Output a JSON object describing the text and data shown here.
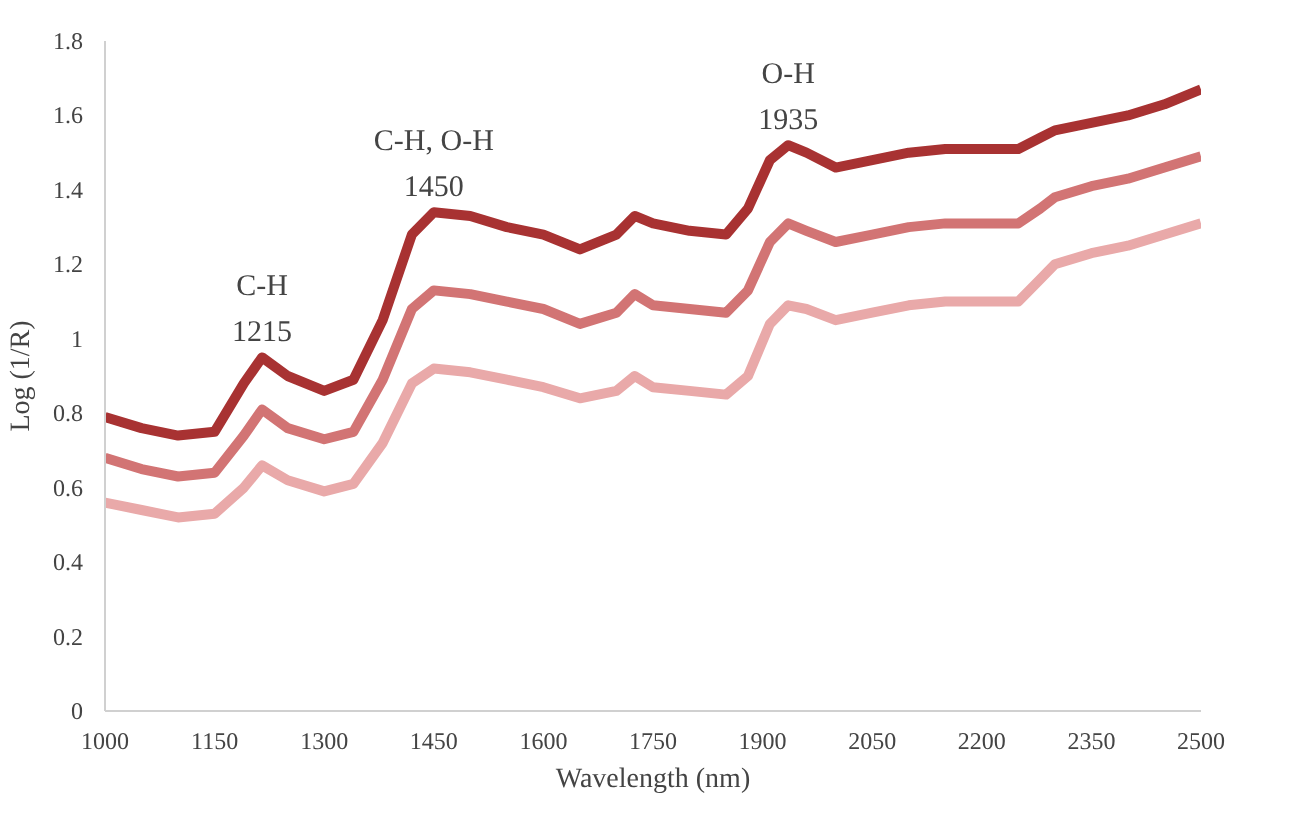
{
  "chart_data": {
    "type": "line",
    "xlabel": "Wavelength (nm)",
    "ylabel": "Log (1/R)",
    "x": [
      1000,
      1050,
      1100,
      1150,
      1190,
      1215,
      1250,
      1300,
      1340,
      1380,
      1420,
      1450,
      1500,
      1550,
      1600,
      1650,
      1700,
      1725,
      1750,
      1800,
      1850,
      1880,
      1910,
      1935,
      1960,
      2000,
      2050,
      2100,
      2150,
      2200,
      2250,
      2280,
      2300,
      2350,
      2400,
      2450,
      2500
    ],
    "series": [
      {
        "color": "#a83232",
        "values": [
          0.79,
          0.76,
          0.74,
          0.75,
          0.88,
          0.95,
          0.9,
          0.86,
          0.89,
          1.05,
          1.28,
          1.34,
          1.33,
          1.3,
          1.28,
          1.24,
          1.28,
          1.33,
          1.31,
          1.29,
          1.28,
          1.35,
          1.48,
          1.52,
          1.5,
          1.46,
          1.48,
          1.5,
          1.51,
          1.51,
          1.51,
          1.54,
          1.56,
          1.58,
          1.6,
          1.63,
          1.67
        ]
      },
      {
        "color": "#d27474",
        "values": [
          0.68,
          0.65,
          0.63,
          0.64,
          0.74,
          0.81,
          0.76,
          0.73,
          0.75,
          0.89,
          1.08,
          1.13,
          1.12,
          1.1,
          1.08,
          1.04,
          1.07,
          1.12,
          1.09,
          1.08,
          1.07,
          1.13,
          1.26,
          1.31,
          1.29,
          1.26,
          1.28,
          1.3,
          1.31,
          1.31,
          1.31,
          1.35,
          1.38,
          1.41,
          1.43,
          1.46,
          1.49
        ]
      },
      {
        "color": "#e9a9a9",
        "values": [
          0.56,
          0.54,
          0.52,
          0.53,
          0.6,
          0.66,
          0.62,
          0.59,
          0.61,
          0.72,
          0.88,
          0.92,
          0.91,
          0.89,
          0.87,
          0.84,
          0.86,
          0.9,
          0.87,
          0.86,
          0.85,
          0.9,
          1.04,
          1.09,
          1.08,
          1.05,
          1.07,
          1.09,
          1.1,
          1.1,
          1.1,
          1.16,
          1.2,
          1.23,
          1.25,
          1.28,
          1.31
        ]
      }
    ],
    "xlim": [
      1000,
      2500
    ],
    "xticks": [
      1000,
      1150,
      1300,
      1450,
      1600,
      1750,
      1900,
      2050,
      2200,
      2350,
      2500
    ],
    "ylim": [
      0,
      1.8
    ],
    "yticks": [
      0,
      {
        "value": 0.2,
        "label": "0.2"
      },
      {
        "value": 0.4,
        "label": "0.4"
      },
      {
        "value": 0.6,
        "label": "0.6"
      },
      {
        "value": 0.8,
        "label": "0.8"
      },
      1,
      {
        "value": 1.2,
        "label": "1.2"
      },
      {
        "value": 1.4,
        "label": "1.4"
      },
      {
        "value": 1.6,
        "label": "1.6"
      },
      {
        "value": 1.8,
        "label": "1.8"
      }
    ],
    "grid": false,
    "marker": "none",
    "line_style": "solid",
    "annotations": [
      {
        "text": "C-H\n1215",
        "x": 1215,
        "y": 0.95
      },
      {
        "text": "C-H, O-H\n1450",
        "x": 1450,
        "y": 1.34
      },
      {
        "text": "O-H\n1935",
        "x": 1935,
        "y": 1.52
      }
    ]
  }
}
